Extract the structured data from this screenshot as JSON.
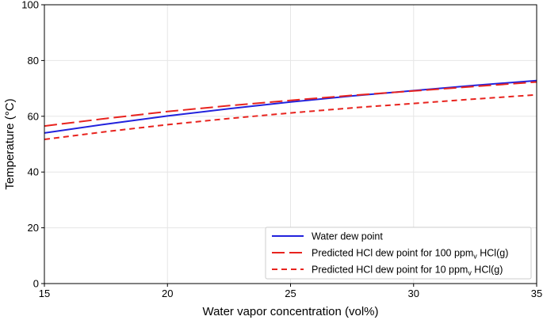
{
  "chart_data": {
    "type": "line",
    "xlabel": "Water vapor concentration (vol%)",
    "ylabel": "Temperature (°C)",
    "xlim": [
      15,
      35
    ],
    "ylim": [
      0,
      100
    ],
    "xticks": [
      15,
      20,
      25,
      30,
      35
    ],
    "yticks": [
      0,
      20,
      40,
      60,
      80,
      100
    ],
    "grid": true,
    "legend_position": "lower-right",
    "series": [
      {
        "name": "Water dew point",
        "legend_prefix": "Water dew point",
        "legend_sub": "",
        "legend_suffix": "",
        "color": "#2222dd",
        "dash": "solid",
        "x": [
          15,
          17.5,
          20,
          22.5,
          25,
          27.5,
          30,
          32.5,
          35
        ],
        "y": [
          54.0,
          57.2,
          60.1,
          62.7,
          65.1,
          67.3,
          69.2,
          71.1,
          72.8
        ]
      },
      {
        "name": "Predicted HCl dew point for 100 ppmv HCl(g)",
        "legend_prefix": "Predicted HCl dew point for 100 ppm",
        "legend_sub": "v",
        "legend_suffix": " HCl(g)",
        "color": "#e8231e",
        "dash": "long",
        "x": [
          15,
          17.5,
          20,
          22.5,
          25,
          27.5,
          30,
          32.5,
          35
        ],
        "y": [
          56.5,
          59.2,
          61.7,
          63.8,
          65.7,
          67.5,
          69.1,
          70.7,
          72.3
        ]
      },
      {
        "name": "Predicted HCl dew point for 10 ppmv HCl(g)",
        "legend_prefix": "Predicted HCl dew point for 10 ppm",
        "legend_sub": "v",
        "legend_suffix": " HCl(g)",
        "color": "#e8231e",
        "dash": "short",
        "x": [
          15,
          17.5,
          20,
          22.5,
          25,
          27.5,
          30,
          32.5,
          35
        ],
        "y": [
          51.7,
          54.5,
          57.0,
          59.2,
          61.2,
          63.0,
          64.6,
          66.2,
          67.7
        ]
      }
    ]
  }
}
